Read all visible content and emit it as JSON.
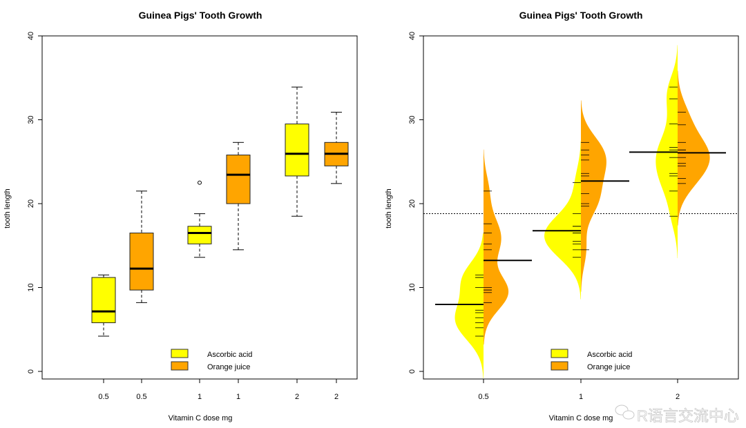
{
  "colors": {
    "ascorbic": "#FFFF00",
    "orange_juice": "#FFA500",
    "line": "#000000",
    "watermark": "#c8c8c8"
  },
  "watermark": "R语言交流中心",
  "chart_data": [
    {
      "type": "boxplot",
      "title": "Guinea Pigs' Tooth Growth",
      "xlabel": "Vitamin C dose mg",
      "ylabel": "tooth length",
      "ylim": [
        0,
        40
      ],
      "yticks": [
        "0",
        "10",
        "20",
        "30",
        "40"
      ],
      "categories": [
        "0.5",
        "0.5",
        "1",
        "1",
        "2",
        "2"
      ],
      "legend": {
        "position": "bottom-center",
        "entries": [
          "Ascorbic acid",
          "Orange juice"
        ]
      },
      "boxes": [
        {
          "supp": "Ascorbic acid",
          "dose": "0.5",
          "min": 4.2,
          "q1": 5.8,
          "median": 7.15,
          "q3": 11.2,
          "max": 11.5,
          "outliers": []
        },
        {
          "supp": "Orange juice",
          "dose": "0.5",
          "min": 8.2,
          "q1": 9.7,
          "median": 12.25,
          "q3": 16.5,
          "max": 21.5,
          "outliers": []
        },
        {
          "supp": "Ascorbic acid",
          "dose": "1",
          "min": 13.6,
          "q1": 15.2,
          "median": 16.5,
          "q3": 17.3,
          "max": 18.8,
          "outliers": [
            22.5
          ]
        },
        {
          "supp": "Orange juice",
          "dose": "1",
          "min": 14.5,
          "q1": 20.0,
          "median": 23.45,
          "q3": 25.8,
          "max": 27.3,
          "outliers": []
        },
        {
          "supp": "Ascorbic acid",
          "dose": "2",
          "min": 18.5,
          "q1": 23.3,
          "median": 25.95,
          "q3": 29.5,
          "max": 33.9,
          "outliers": []
        },
        {
          "supp": "Orange juice",
          "dose": "2",
          "min": 22.4,
          "q1": 24.5,
          "median": 25.95,
          "q3": 27.3,
          "max": 30.9,
          "outliers": []
        }
      ]
    },
    {
      "type": "beanplot",
      "title": "Guinea Pigs' Tooth Growth",
      "xlabel": "Vitamin C dose mg",
      "ylabel": "tooth length",
      "ylim": [
        0,
        40
      ],
      "yticks": [
        "0",
        "10",
        "20",
        "30",
        "40"
      ],
      "categories": [
        "0.5",
        "1",
        "2"
      ],
      "overall_mean": 18.81,
      "legend": {
        "position": "bottom-center",
        "entries": [
          "Ascorbic acid",
          "Orange juice"
        ]
      },
      "groups": [
        {
          "dose": "0.5",
          "ascorbic": {
            "mean": 7.98,
            "values": [
              4.2,
              11.5,
              7.3,
              5.8,
              6.4,
              10,
              11.2,
              11.2,
              5.2,
              7
            ]
          },
          "orange_juice": {
            "mean": 13.23,
            "values": [
              15.2,
              21.5,
              17.6,
              9.7,
              14.5,
              10,
              8.2,
              9.4,
              16.5,
              9.7
            ]
          }
        },
        {
          "dose": "1",
          "ascorbic": {
            "mean": 16.77,
            "values": [
              16.5,
              16.5,
              15.2,
              17.3,
              22.5,
              17.3,
              13.6,
              14.5,
              18.8,
              15.5
            ]
          },
          "orange_juice": {
            "mean": 22.7,
            "values": [
              19.7,
              23.3,
              23.6,
              26.4,
              20,
              25.2,
              25.8,
              21.2,
              14.5,
              27.3
            ]
          }
        },
        {
          "dose": "2",
          "ascorbic": {
            "mean": 26.14,
            "values": [
              23.6,
              18.5,
              33.9,
              25.5,
              26.4,
              32.5,
              26.7,
              21.5,
              23.3,
              29.5
            ]
          },
          "orange_juice": {
            "mean": 26.06,
            "values": [
              25.5,
              26.4,
              22.4,
              24.5,
              24.8,
              30.9,
              26.4,
              27.3,
              29.4,
              23
            ]
          }
        }
      ]
    }
  ]
}
